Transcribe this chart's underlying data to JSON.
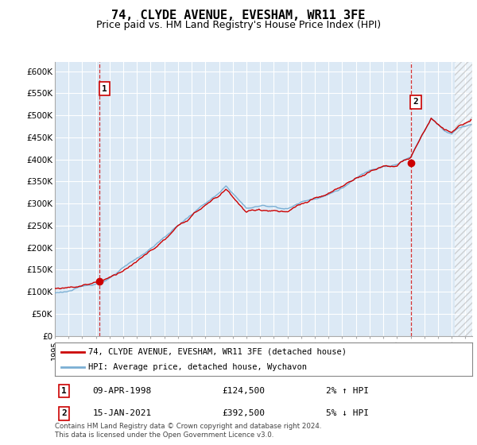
{
  "title": "74, CLYDE AVENUE, EVESHAM, WR11 3FE",
  "subtitle": "Price paid vs. HM Land Registry's House Price Index (HPI)",
  "ylim": [
    0,
    620000
  ],
  "yticks": [
    0,
    50000,
    100000,
    150000,
    200000,
    250000,
    300000,
    350000,
    400000,
    450000,
    500000,
    550000,
    600000
  ],
  "ytick_labels": [
    "£0",
    "£50K",
    "£100K",
    "£150K",
    "£200K",
    "£250K",
    "£300K",
    "£350K",
    "£400K",
    "£450K",
    "£500K",
    "£550K",
    "£600K"
  ],
  "xlim_start": 1995.0,
  "xlim_end": 2025.5,
  "sale1_date": 1998.27,
  "sale1_price": 124500,
  "sale2_date": 2021.04,
  "sale2_price": 392500,
  "legend_line1": "74, CLYDE AVENUE, EVESHAM, WR11 3FE (detached house)",
  "legend_line2": "HPI: Average price, detached house, Wychavon",
  "note1_date": "09-APR-1998",
  "note1_price": "£124,500",
  "note1_hpi": "2% ↑ HPI",
  "note2_date": "15-JAN-2021",
  "note2_price": "£392,500",
  "note2_hpi": "5% ↓ HPI",
  "footer": "Contains HM Land Registry data © Crown copyright and database right 2024.\nThis data is licensed under the Open Government Licence v3.0.",
  "line_color_red": "#cc0000",
  "line_color_blue": "#7bafd4",
  "chart_bg": "#dce9f5",
  "background_color": "#ffffff",
  "grid_color": "#ffffff",
  "hatch_start": 2024.25
}
